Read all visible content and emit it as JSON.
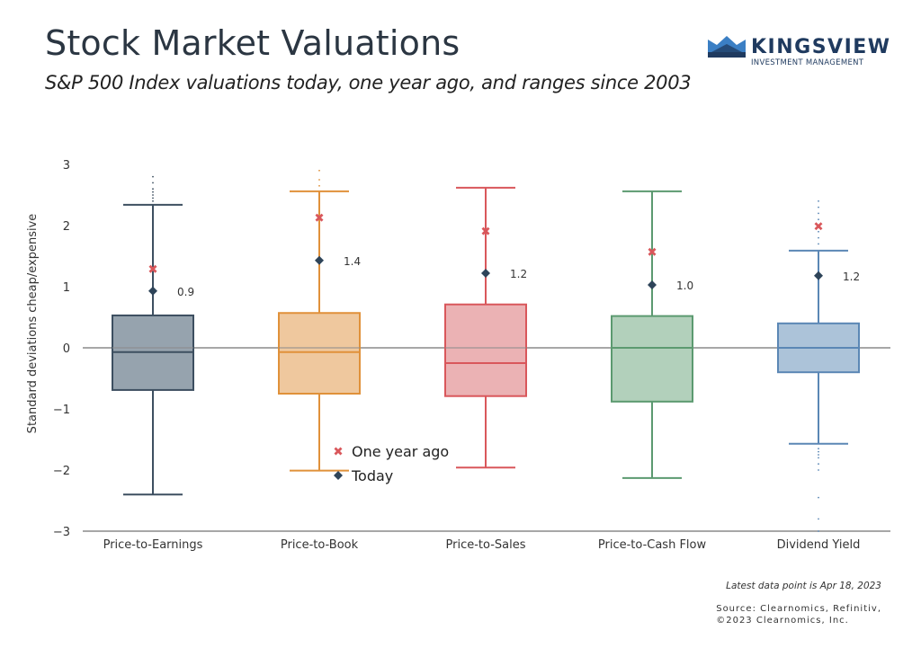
{
  "header": {
    "title": "Stock Market Valuations",
    "subtitle": "S&P 500 Index valuations today, one year ago, and ranges since 2003"
  },
  "logo": {
    "name": "KINGSVIEW",
    "tagline": "INVESTMENT MANAGEMENT",
    "icon": "crown-icon",
    "colors": {
      "dark": "#1f3a5f",
      "light": "#3b7fc4"
    }
  },
  "footer": {
    "latest": "Latest data point is Apr 18, 2023",
    "source_line1": "Source: Clearnomics, Refinitiv,",
    "source_line2": "©2023 Clearnomics, Inc."
  },
  "chart_data": {
    "type": "box",
    "title": "Stock Market Valuations",
    "subtitle": "S&P 500 Index valuations today, one year ago, and ranges since 2003",
    "xlabel": "",
    "ylabel": "Standard deviations cheap/expensive",
    "ylim": [
      -3,
      3
    ],
    "yticks": [
      3,
      2,
      1,
      0,
      -1,
      -2,
      -3
    ],
    "ytick_labels": [
      "3",
      "2",
      "1",
      "0",
      "−1",
      "−2",
      "−3"
    ],
    "grid": false,
    "zero_line": true,
    "legend": {
      "placement": "center-bottom",
      "entries": [
        {
          "label": "One year ago",
          "marker": "x",
          "color": "#d9575b"
        },
        {
          "label": "Today",
          "marker": "diamond",
          "color": "#2e4459"
        }
      ]
    },
    "categories": [
      "Price-to-Earnings",
      "Price-to-Book",
      "Price-to-Sales",
      "Price-to-Cash Flow",
      "Dividend Yield"
    ],
    "series": [
      {
        "name": "Price-to-Earnings",
        "color": "#3d4f60",
        "fill": "#96a3ae",
        "whisker_low": -2.4,
        "q1": -0.69,
        "median": -0.07,
        "q3": 0.53,
        "whisker_high": 2.34,
        "outliers": [
          2.4,
          2.45,
          2.5,
          2.55,
          2.6,
          2.7,
          2.8
        ],
        "one_year_ago": 1.29,
        "today": 0.93,
        "today_label": "0.9"
      },
      {
        "name": "Price-to-Book",
        "color": "#e0913a",
        "fill": "#efc89e",
        "whisker_low": -2.01,
        "q1": -0.75,
        "median": -0.07,
        "q3": 0.57,
        "whisker_high": 2.56,
        "outliers": [
          2.65,
          2.75,
          2.9
        ],
        "one_year_ago": 2.13,
        "today": 1.43,
        "today_label": "1.4"
      },
      {
        "name": "Price-to-Sales",
        "color": "#d9575b",
        "fill": "#ebb2b4",
        "whisker_low": -1.96,
        "q1": -0.79,
        "median": -0.25,
        "q3": 0.71,
        "whisker_high": 2.62,
        "outliers": [],
        "one_year_ago": 1.91,
        "today": 1.22,
        "today_label": "1.2"
      },
      {
        "name": "Price-to-Cash Flow",
        "color": "#5c9a70",
        "fill": "#b2d0bb",
        "whisker_low": -2.13,
        "q1": -0.88,
        "median": 0.0,
        "q3": 0.52,
        "whisker_high": 2.56,
        "outliers": [],
        "one_year_ago": 1.57,
        "today": 1.03,
        "today_label": "1.0"
      },
      {
        "name": "Dividend Yield",
        "color": "#5b87b5",
        "fill": "#acc3d9",
        "whisker_low": -1.57,
        "q1": -0.4,
        "median": 0.0,
        "q3": 0.4,
        "whisker_high": 1.59,
        "outliers": [
          1.7,
          1.8,
          1.9,
          2.0,
          2.1,
          2.2,
          2.3,
          2.4,
          -1.65,
          -1.7,
          -1.75,
          -1.8,
          -1.9,
          -2.0,
          -2.45,
          -2.8,
          -3.0
        ],
        "one_year_ago": 1.99,
        "today": 1.18,
        "today_label": "1.2"
      }
    ]
  }
}
